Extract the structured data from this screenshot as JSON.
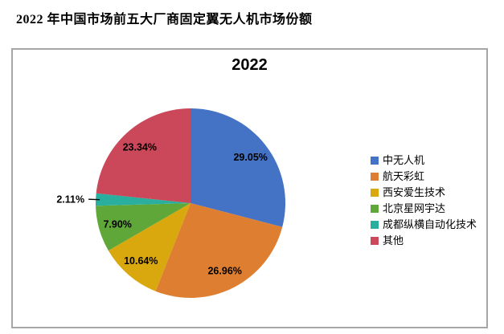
{
  "page": {
    "title": "2022 年中国市场前五大厂商固定翼无人机市场份额"
  },
  "chart_data": {
    "type": "pie",
    "title": "2022",
    "categories": [
      "中无人机",
      "航天彩虹",
      "西安爱生技术",
      "北京星网宇达",
      "成都纵横自动化技术",
      "其他"
    ],
    "values": [
      29.05,
      26.96,
      10.64,
      7.9,
      2.11,
      23.34
    ],
    "data_labels": [
      "29.05%",
      "26.96%",
      "10.64%",
      "7.90%",
      "2.11%",
      "23.34%"
    ],
    "colors": [
      "#4472c4",
      "#de7e30",
      "#d9a70e",
      "#5fa738",
      "#2aae9d",
      "#ca4859"
    ],
    "label_color": "#000000",
    "start_angle_deg": 0,
    "direction": "clockwise",
    "legend_position": "right",
    "outside_label_indices": [
      4
    ],
    "frame_border_color": "#a6a6a6",
    "background_color": "#ffffff"
  }
}
